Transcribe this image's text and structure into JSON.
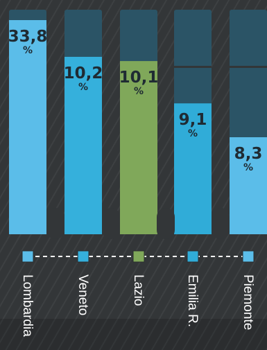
{
  "chart_data": {
    "type": "bar",
    "categories": [
      "Lombardia",
      "Veneto",
      "Lazio",
      "Emilia R.",
      "Piemonte"
    ],
    "values": [
      33.8,
      10.2,
      10.1,
      9.1,
      8.3
    ],
    "value_labels": [
      "33,8",
      "10,2",
      "10,1",
      "9,1",
      "8,3"
    ],
    "unit": "%",
    "colors": [
      "#5bbde9",
      "#35b0dc",
      "#80a85a",
      "#30acd8",
      "#5bbde9"
    ],
    "track_color": "#2b5466",
    "grid": false,
    "legend": "bottom"
  }
}
